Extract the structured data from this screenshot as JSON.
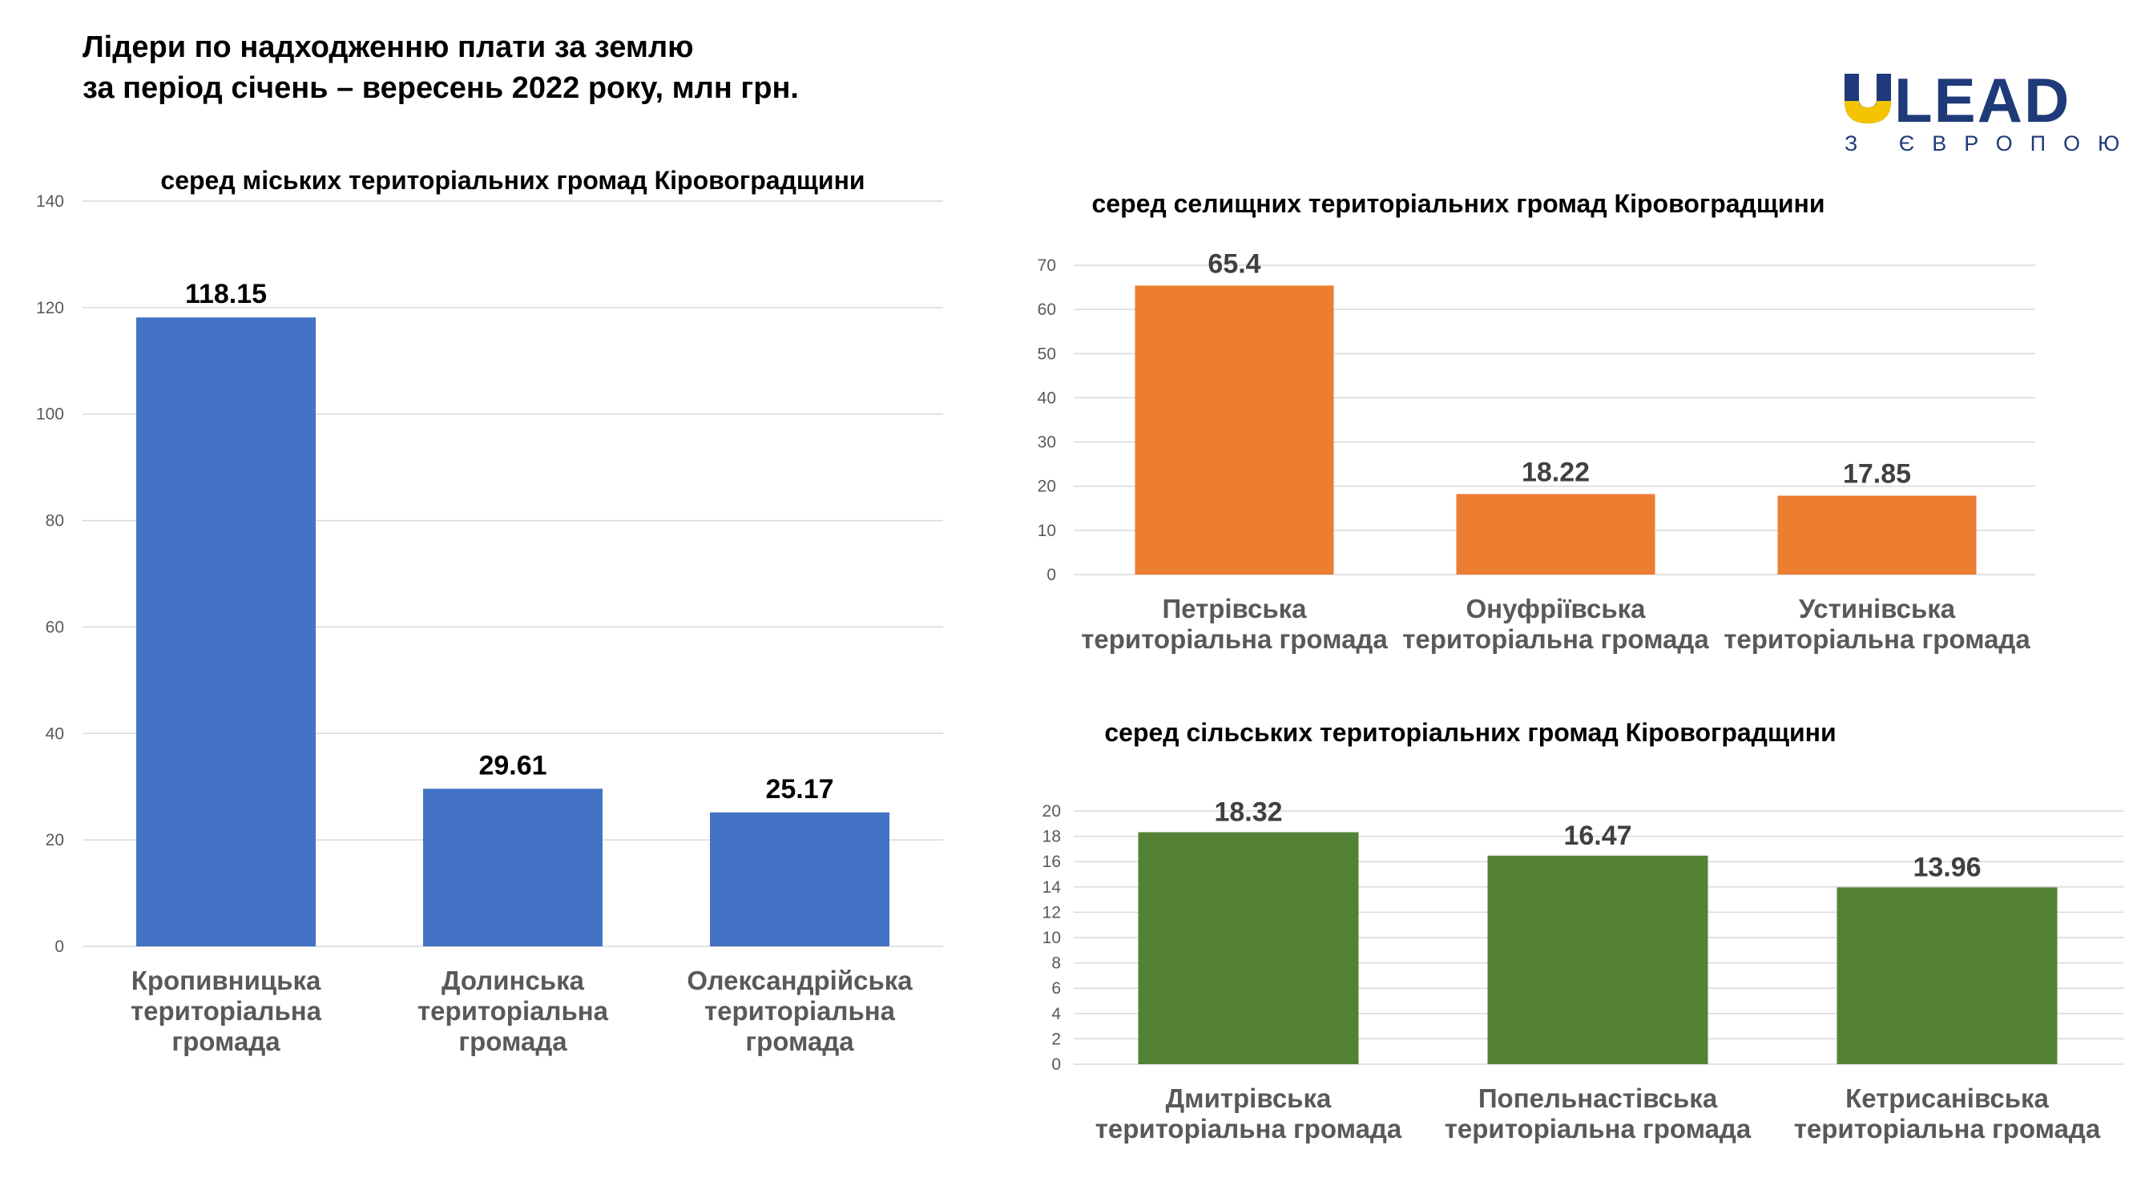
{
  "title": {
    "line1": "Лідери по надходженню плати за землю",
    "line2": "за період січень – вересень 2022 року, млн грн."
  },
  "logo": {
    "text": "LEAD",
    "sub": "З ЄВРОПОЮ",
    "colors": {
      "blue": "#1f3a78",
      "yellow": "#f5c400"
    }
  },
  "chart_data": [
    {
      "type": "bar",
      "title": "серед міських територіальних громад Кіровоградщини",
      "categories": [
        [
          "Кропивницька",
          "територіальна",
          "громада"
        ],
        [
          "Долинська",
          "територіальна",
          "громада"
        ],
        [
          "Олександрійська",
          "територіальна",
          "громада"
        ]
      ],
      "values": [
        118.15,
        29.61,
        25.17
      ],
      "value_labels": [
        "118.15",
        "29.61",
        "25.17"
      ],
      "ylim": [
        0,
        140
      ],
      "yticks": [
        0,
        20,
        40,
        60,
        80,
        100,
        120,
        140
      ],
      "color": "#4472c4",
      "label_color": "#000000",
      "grid": true,
      "legend": "none"
    },
    {
      "type": "bar",
      "title": "серед селищних територіальних громад Кіровоградщини",
      "categories": [
        [
          "Петрівська",
          "територіальна громада"
        ],
        [
          "Онуфріївська",
          "територіальна громада"
        ],
        [
          "Устинівська",
          "територіальна громада"
        ]
      ],
      "values": [
        65.4,
        18.22,
        17.85
      ],
      "value_labels": [
        "65.4",
        "18.22",
        "17.85"
      ],
      "ylim": [
        0,
        70
      ],
      "yticks": [
        0,
        10,
        20,
        30,
        40,
        50,
        60,
        70
      ],
      "color": "#ed7d31",
      "label_color": "#404040",
      "grid": true,
      "legend": "none"
    },
    {
      "type": "bar",
      "title": "серед сільських територіальних громад Кіровоградщини",
      "categories": [
        [
          "Дмитрівська",
          "територіальна громада"
        ],
        [
          "Попельнастівська",
          "територіальна громада"
        ],
        [
          "Кетрисанівська",
          "територіальна громада"
        ]
      ],
      "values": [
        18.32,
        16.47,
        13.96
      ],
      "value_labels": [
        "18.32",
        "16.47",
        "13.96"
      ],
      "ylim": [
        0,
        20
      ],
      "yticks": [
        0,
        2,
        4,
        6,
        8,
        10,
        12,
        14,
        16,
        18,
        20
      ],
      "color": "#548235",
      "label_color": "#404040",
      "grid": true,
      "legend": "none"
    }
  ]
}
